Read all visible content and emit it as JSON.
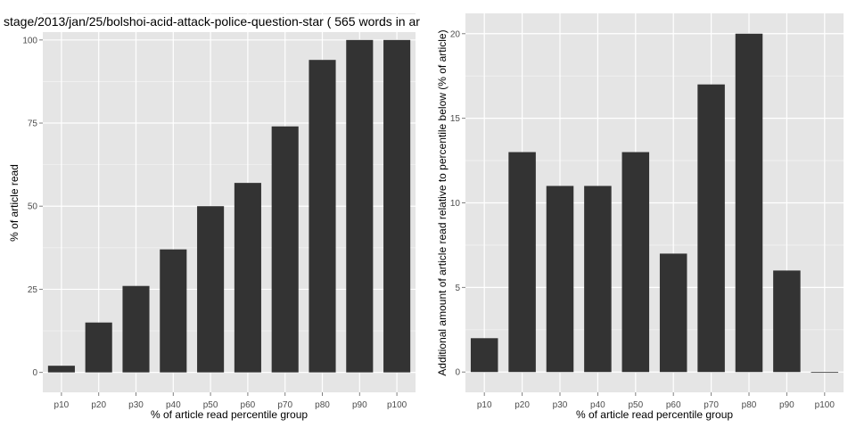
{
  "chart_data": [
    {
      "type": "bar",
      "title": "stage/2013/jan/25/bolshoi-acid-attack-police-question-star ( 565 words in ar",
      "xlabel": "% of article read percentile group",
      "ylabel": "% of article read",
      "categories": [
        "p10",
        "p20",
        "p30",
        "p40",
        "p50",
        "p60",
        "p70",
        "p80",
        "p90",
        "p100"
      ],
      "values": [
        2,
        15,
        26,
        37,
        50,
        57,
        74,
        94,
        100,
        100
      ],
      "ylim": [
        -6,
        108
      ],
      "yticks": [
        0,
        25,
        50,
        75,
        100
      ],
      "grid": true,
      "colors": {
        "bar": "#333333",
        "panel": "#e5e5e5",
        "grid_major": "#ffffff",
        "grid_minor": "#f2f2f2"
      }
    },
    {
      "type": "bar",
      "title": "",
      "xlabel": "% of article read percentile group",
      "ylabel": "Additional amount of article read relative to percentile below (% of article)",
      "categories": [
        "p10",
        "p20",
        "p30",
        "p40",
        "p50",
        "p60",
        "p70",
        "p80",
        "p90",
        "p100"
      ],
      "values": [
        2,
        13,
        11,
        11,
        13,
        7,
        17,
        20,
        6,
        0
      ],
      "ylim": [
        -1.2,
        21.2
      ],
      "yticks": [
        0,
        5,
        10,
        15,
        20
      ],
      "grid": true,
      "colors": {
        "bar": "#333333",
        "panel": "#e5e5e5",
        "grid_major": "#ffffff",
        "grid_minor": "#f2f2f2"
      }
    }
  ]
}
